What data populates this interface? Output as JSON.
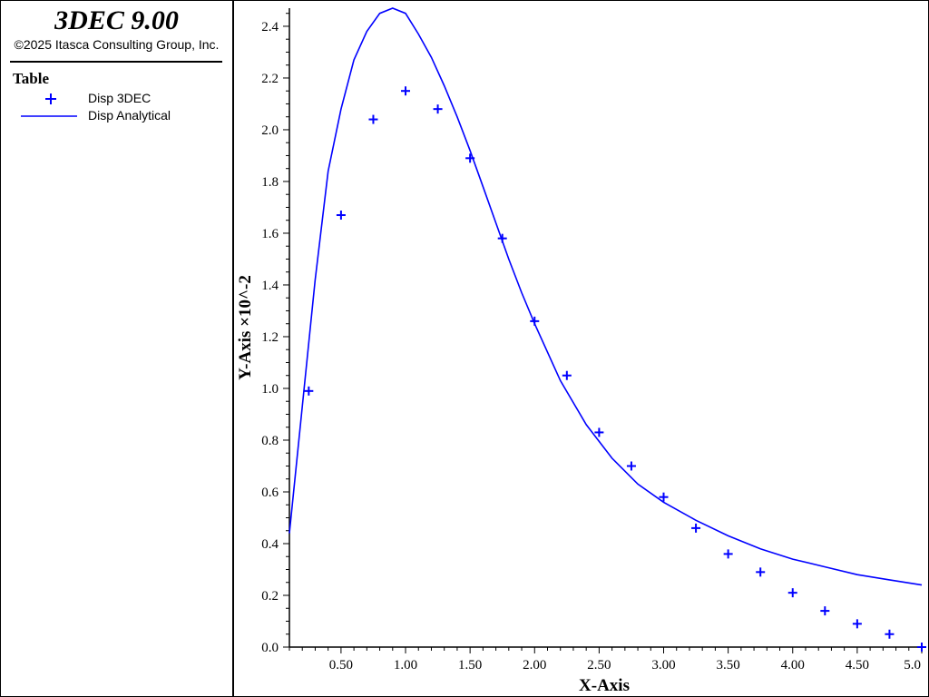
{
  "app": {
    "title": "3DEC 9.00",
    "copyright": "©2025 Itasca Consulting Group, Inc."
  },
  "legend": {
    "title": "Table",
    "items": [
      {
        "label": "Disp 3DEC",
        "symbol": "plus-marker-icon"
      },
      {
        "label": "Disp Analytical",
        "symbol": "line-icon"
      }
    ]
  },
  "colors": {
    "series": "#0000ff",
    "axis": "#000000",
    "background": "#ffffff"
  },
  "chart_data": {
    "type": "scatter",
    "xlabel": "X-Axis",
    "ylabel": "Y-Axis ×10^-2",
    "xlim": [
      0.1,
      5.0
    ],
    "ylim": [
      0.0,
      2.47
    ],
    "x_ticks": [
      0.5,
      1.0,
      1.5,
      2.0,
      2.5,
      3.0,
      3.5,
      4.0,
      4.5,
      5.0
    ],
    "x_tick_labels": [
      "0.50",
      "1.00",
      "1.50",
      "2.00",
      "2.50",
      "3.00",
      "3.50",
      "4.00",
      "4.50",
      "5.0"
    ],
    "y_ticks": [
      0.0,
      0.2,
      0.4,
      0.6,
      0.8,
      1.0,
      1.2,
      1.4,
      1.6,
      1.8,
      2.0,
      2.2,
      2.4
    ],
    "y_tick_labels": [
      "0.0",
      "0.2",
      "0.4",
      "0.6",
      "0.8",
      "1.0",
      "1.2",
      "1.4",
      "1.6",
      "1.8",
      "2.0",
      "2.2",
      "2.4"
    ],
    "grid": false,
    "legend_position": "left-panel",
    "series": [
      {
        "name": "Disp 3DEC",
        "style": "markers",
        "x": [
          0.25,
          0.5,
          0.75,
          1.0,
          1.25,
          1.5,
          1.75,
          2.0,
          2.25,
          2.5,
          2.75,
          3.0,
          3.25,
          3.5,
          3.75,
          4.0,
          4.25,
          4.5,
          4.75,
          5.0
        ],
        "y": [
          0.99,
          1.67,
          2.04,
          2.15,
          2.08,
          1.89,
          1.58,
          1.26,
          1.05,
          0.83,
          0.7,
          0.58,
          0.46,
          0.36,
          0.29,
          0.21,
          0.14,
          0.09,
          0.05,
          0.0
        ]
      },
      {
        "name": "Disp Analytical",
        "style": "line",
        "x": [
          0.1,
          0.2,
          0.3,
          0.4,
          0.5,
          0.6,
          0.7,
          0.8,
          0.9,
          1.0,
          1.1,
          1.2,
          1.3,
          1.4,
          1.5,
          1.6,
          1.7,
          1.8,
          1.9,
          2.0,
          2.2,
          2.4,
          2.6,
          2.8,
          3.0,
          3.25,
          3.5,
          3.75,
          4.0,
          4.25,
          4.5,
          4.75,
          5.0
        ],
        "y": [
          0.44,
          0.93,
          1.42,
          1.84,
          2.08,
          2.27,
          2.38,
          2.45,
          2.47,
          2.45,
          2.37,
          2.28,
          2.17,
          2.05,
          1.92,
          1.78,
          1.64,
          1.5,
          1.37,
          1.25,
          1.03,
          0.86,
          0.73,
          0.63,
          0.56,
          0.49,
          0.43,
          0.38,
          0.34,
          0.31,
          0.28,
          0.26,
          0.24
        ]
      }
    ]
  }
}
